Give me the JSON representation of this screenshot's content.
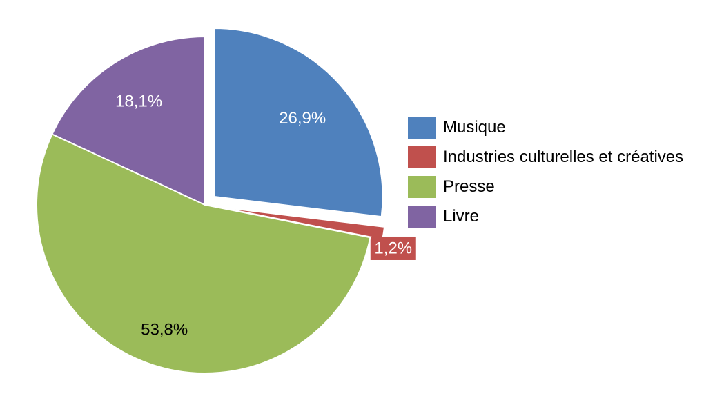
{
  "chart_data": {
    "type": "pie",
    "title": "",
    "slices": [
      {
        "label": "Musique",
        "value": 26.9,
        "value_label": "26,9%",
        "color": "#4f81bd",
        "exploded": true,
        "label_color": "#ffffff"
      },
      {
        "label": "Industries culturelles et créatives",
        "value": 1.2,
        "value_label": "1,2%",
        "color": "#c0504d",
        "exploded": true,
        "label_color": "#ffffff"
      },
      {
        "label": "Presse",
        "value": 53.8,
        "value_label": "53,8%",
        "color": "#9bbb59",
        "exploded": false,
        "label_color": "#000000"
      },
      {
        "label": "Livre",
        "value": 18.1,
        "value_label": "18,1%",
        "color": "#8064a2",
        "exploded": false,
        "label_color": "#ffffff"
      }
    ],
    "legend_position": "right"
  }
}
